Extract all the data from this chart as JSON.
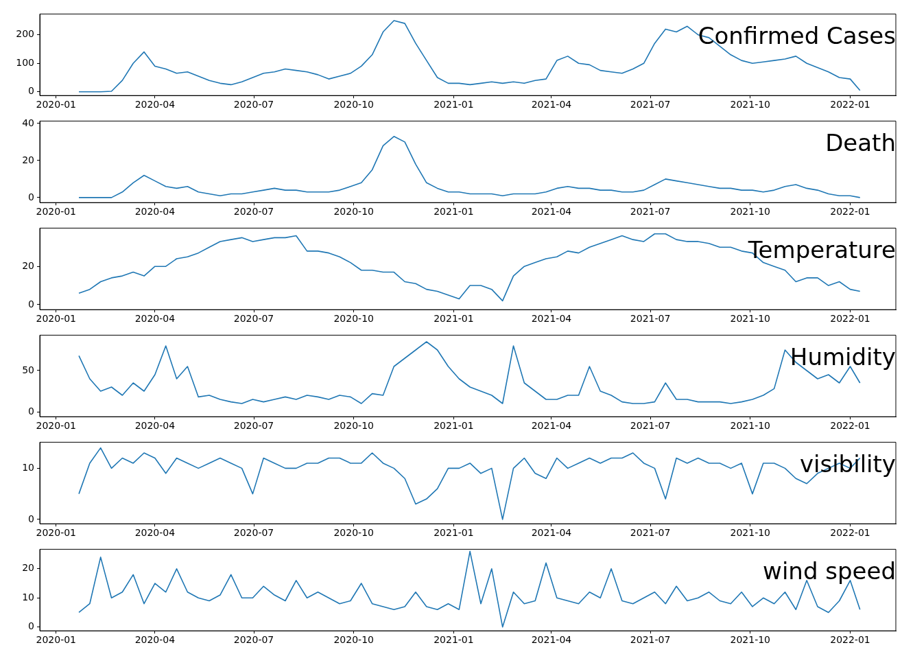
{
  "chart_data": [
    {
      "type": "line",
      "title": "Confirmed Cases",
      "color": "#1f77b4",
      "marker": "none",
      "line_style": "solid",
      "grid": false,
      "legend": false,
      "x": [
        "2020-01-22",
        "2020-02-01",
        "2020-02-11",
        "2020-02-21",
        "2020-03-02",
        "2020-03-12",
        "2020-03-22",
        "2020-04-01",
        "2020-04-11",
        "2020-04-21",
        "2020-05-01",
        "2020-05-11",
        "2020-05-21",
        "2020-05-31",
        "2020-06-10",
        "2020-06-20",
        "2020-06-30",
        "2020-07-10",
        "2020-07-20",
        "2020-07-30",
        "2020-08-09",
        "2020-08-19",
        "2020-08-29",
        "2020-09-08",
        "2020-09-18",
        "2020-09-28",
        "2020-10-08",
        "2020-10-18",
        "2020-10-28",
        "2020-11-07",
        "2020-11-17",
        "2020-11-27",
        "2020-12-07",
        "2020-12-17",
        "2020-12-27",
        "2021-01-06",
        "2021-01-16",
        "2021-01-26",
        "2021-02-05",
        "2021-02-15",
        "2021-02-25",
        "2021-03-07",
        "2021-03-17",
        "2021-03-27",
        "2021-04-06",
        "2021-04-16",
        "2021-04-26",
        "2021-05-06",
        "2021-05-16",
        "2021-05-26",
        "2021-06-05",
        "2021-06-15",
        "2021-06-25",
        "2021-07-05",
        "2021-07-15",
        "2021-07-25",
        "2021-08-04",
        "2021-08-14",
        "2021-08-24",
        "2021-09-03",
        "2021-09-13",
        "2021-09-23",
        "2021-10-03",
        "2021-10-13",
        "2021-10-23",
        "2021-11-02",
        "2021-11-12",
        "2021-11-22",
        "2021-12-02",
        "2021-12-12",
        "2021-12-22",
        "2022-01-01",
        "2022-01-10"
      ],
      "values": [
        0,
        0,
        0,
        2,
        40,
        100,
        140,
        90,
        80,
        65,
        70,
        55,
        40,
        30,
        25,
        35,
        50,
        65,
        70,
        80,
        75,
        70,
        60,
        45,
        55,
        65,
        90,
        130,
        210,
        250,
        240,
        170,
        110,
        50,
        30,
        30,
        25,
        30,
        35,
        30,
        35,
        30,
        40,
        45,
        110,
        125,
        100,
        95,
        75,
        70,
        65,
        80,
        100,
        170,
        220,
        210,
        230,
        200,
        190,
        160,
        130,
        110,
        100,
        105,
        110,
        115,
        125,
        100,
        85,
        70,
        50,
        45,
        5
      ],
      "xlim": [
        "2019-12-17",
        "2022-02-12"
      ],
      "xticks": [
        "2020-01",
        "2020-04",
        "2020-07",
        "2020-10",
        "2021-01",
        "2021-04",
        "2021-07",
        "2021-10",
        "2022-01"
      ],
      "ylim": [
        -13,
        273
      ],
      "yticks": [
        0,
        100,
        200
      ]
    },
    {
      "type": "line",
      "title": "Death",
      "color": "#1f77b4",
      "marker": "none",
      "line_style": "solid",
      "grid": false,
      "legend": false,
      "x": [
        "2020-01-22",
        "2020-02-01",
        "2020-02-11",
        "2020-02-21",
        "2020-03-02",
        "2020-03-12",
        "2020-03-22",
        "2020-04-01",
        "2020-04-11",
        "2020-04-21",
        "2020-05-01",
        "2020-05-11",
        "2020-05-21",
        "2020-05-31",
        "2020-06-10",
        "2020-06-20",
        "2020-06-30",
        "2020-07-10",
        "2020-07-20",
        "2020-07-30",
        "2020-08-09",
        "2020-08-19",
        "2020-08-29",
        "2020-09-08",
        "2020-09-18",
        "2020-09-28",
        "2020-10-08",
        "2020-10-18",
        "2020-10-28",
        "2020-11-07",
        "2020-11-17",
        "2020-11-27",
        "2020-12-07",
        "2020-12-17",
        "2020-12-27",
        "2021-01-06",
        "2021-01-16",
        "2021-01-26",
        "2021-02-05",
        "2021-02-15",
        "2021-02-25",
        "2021-03-07",
        "2021-03-17",
        "2021-03-27",
        "2021-04-06",
        "2021-04-16",
        "2021-04-26",
        "2021-05-06",
        "2021-05-16",
        "2021-05-26",
        "2021-06-05",
        "2021-06-15",
        "2021-06-25",
        "2021-07-05",
        "2021-07-15",
        "2021-07-25",
        "2021-08-04",
        "2021-08-14",
        "2021-08-24",
        "2021-09-03",
        "2021-09-13",
        "2021-09-23",
        "2021-10-03",
        "2021-10-13",
        "2021-10-23",
        "2021-11-02",
        "2021-11-12",
        "2021-11-22",
        "2021-12-02",
        "2021-12-12",
        "2021-12-22",
        "2022-01-01",
        "2022-01-10"
      ],
      "values": [
        0,
        0,
        0,
        0,
        3,
        8,
        12,
        9,
        6,
        5,
        6,
        3,
        2,
        1,
        2,
        2,
        3,
        4,
        5,
        4,
        4,
        3,
        3,
        3,
        4,
        6,
        8,
        15,
        28,
        33,
        30,
        18,
        8,
        5,
        3,
        3,
        2,
        2,
        2,
        1,
        2,
        2,
        2,
        3,
        5,
        6,
        5,
        5,
        4,
        4,
        3,
        3,
        4,
        7,
        10,
        9,
        8,
        7,
        6,
        5,
        5,
        4,
        4,
        3,
        4,
        6,
        7,
        5,
        4,
        2,
        1,
        1,
        0
      ],
      "xlim": [
        "2019-12-17",
        "2022-02-12"
      ],
      "xticks": [
        "2020-01",
        "2020-04",
        "2020-07",
        "2020-10",
        "2021-01",
        "2021-04",
        "2021-07",
        "2021-10",
        "2022-01"
      ],
      "ylim": [
        -2.7,
        41.3
      ],
      "yticks": [
        0,
        20,
        40
      ]
    },
    {
      "type": "line",
      "title": "Temperature",
      "color": "#1f77b4",
      "marker": "none",
      "line_style": "solid",
      "grid": false,
      "legend": false,
      "x": [
        "2020-01-22",
        "2020-02-01",
        "2020-02-11",
        "2020-02-21",
        "2020-03-02",
        "2020-03-12",
        "2020-03-22",
        "2020-04-01",
        "2020-04-11",
        "2020-04-21",
        "2020-05-01",
        "2020-05-11",
        "2020-05-21",
        "2020-05-31",
        "2020-06-10",
        "2020-06-20",
        "2020-06-30",
        "2020-07-10",
        "2020-07-20",
        "2020-07-30",
        "2020-08-09",
        "2020-08-19",
        "2020-08-29",
        "2020-09-08",
        "2020-09-18",
        "2020-09-28",
        "2020-10-08",
        "2020-10-18",
        "2020-10-28",
        "2020-11-07",
        "2020-11-17",
        "2020-11-27",
        "2020-12-07",
        "2020-12-17",
        "2020-12-27",
        "2021-01-06",
        "2021-01-16",
        "2021-01-26",
        "2021-02-05",
        "2021-02-15",
        "2021-02-25",
        "2021-03-07",
        "2021-03-17",
        "2021-03-27",
        "2021-04-06",
        "2021-04-16",
        "2021-04-26",
        "2021-05-06",
        "2021-05-16",
        "2021-05-26",
        "2021-06-05",
        "2021-06-15",
        "2021-06-25",
        "2021-07-05",
        "2021-07-15",
        "2021-07-25",
        "2021-08-04",
        "2021-08-14",
        "2021-08-24",
        "2021-09-03",
        "2021-09-13",
        "2021-09-23",
        "2021-10-03",
        "2021-10-13",
        "2021-10-23",
        "2021-11-02",
        "2021-11-12",
        "2021-11-22",
        "2021-12-02",
        "2021-12-12",
        "2021-12-22",
        "2022-01-01",
        "2022-01-10"
      ],
      "values": [
        6,
        8,
        12,
        14,
        15,
        17,
        15,
        20,
        20,
        24,
        25,
        27,
        30,
        33,
        34,
        35,
        33,
        34,
        35,
        35,
        36,
        28,
        28,
        27,
        25,
        22,
        18,
        18,
        17,
        17,
        12,
        11,
        8,
        7,
        5,
        3,
        10,
        10,
        8,
        2,
        15,
        20,
        22,
        24,
        25,
        28,
        27,
        30,
        32,
        34,
        36,
        34,
        33,
        37,
        37,
        34,
        33,
        33,
        32,
        30,
        30,
        28,
        27,
        22,
        20,
        18,
        12,
        14,
        14,
        10,
        12,
        8,
        7
      ],
      "xlim": [
        "2019-12-17",
        "2022-02-12"
      ],
      "xticks": [
        "2020-01",
        "2020-04",
        "2020-07",
        "2020-10",
        "2021-01",
        "2021-04",
        "2021-07",
        "2021-10",
        "2022-01"
      ],
      "ylim": [
        -2.6,
        40
      ],
      "yticks": [
        0,
        20
      ]
    },
    {
      "type": "line",
      "title": "Humidity",
      "color": "#1f77b4",
      "marker": "none",
      "line_style": "solid",
      "grid": false,
      "legend": false,
      "x": [
        "2020-01-22",
        "2020-02-01",
        "2020-02-11",
        "2020-02-21",
        "2020-03-02",
        "2020-03-12",
        "2020-03-22",
        "2020-04-01",
        "2020-04-11",
        "2020-04-21",
        "2020-05-01",
        "2020-05-11",
        "2020-05-21",
        "2020-05-31",
        "2020-06-10",
        "2020-06-20",
        "2020-06-30",
        "2020-07-10",
        "2020-07-20",
        "2020-07-30",
        "2020-08-09",
        "2020-08-19",
        "2020-08-29",
        "2020-09-08",
        "2020-09-18",
        "2020-09-28",
        "2020-10-08",
        "2020-10-18",
        "2020-10-28",
        "2020-11-07",
        "2020-11-17",
        "2020-11-27",
        "2020-12-07",
        "2020-12-17",
        "2020-12-27",
        "2021-01-06",
        "2021-01-16",
        "2021-01-26",
        "2021-02-05",
        "2021-02-15",
        "2021-02-25",
        "2021-03-07",
        "2021-03-17",
        "2021-03-27",
        "2021-04-06",
        "2021-04-16",
        "2021-04-26",
        "2021-05-06",
        "2021-05-16",
        "2021-05-26",
        "2021-06-05",
        "2021-06-15",
        "2021-06-25",
        "2021-07-05",
        "2021-07-15",
        "2021-07-25",
        "2021-08-04",
        "2021-08-14",
        "2021-08-24",
        "2021-09-03",
        "2021-09-13",
        "2021-09-23",
        "2021-10-03",
        "2021-10-13",
        "2021-10-23",
        "2021-11-02",
        "2021-11-12",
        "2021-11-22",
        "2021-12-02",
        "2021-12-12",
        "2021-12-22",
        "2022-01-01",
        "2022-01-10"
      ],
      "values": [
        68,
        40,
        25,
        30,
        20,
        35,
        25,
        45,
        80,
        40,
        55,
        18,
        20,
        15,
        12,
        10,
        15,
        12,
        15,
        18,
        15,
        20,
        18,
        15,
        20,
        18,
        10,
        22,
        20,
        55,
        65,
        75,
        85,
        75,
        55,
        40,
        30,
        25,
        20,
        10,
        80,
        35,
        25,
        15,
        15,
        20,
        20,
        55,
        25,
        20,
        12,
        10,
        10,
        12,
        35,
        15,
        15,
        12,
        12,
        12,
        10,
        12,
        15,
        20,
        28,
        75,
        60,
        50,
        40,
        45,
        35,
        55,
        35
      ],
      "xlim": [
        "2019-12-17",
        "2022-02-12"
      ],
      "xticks": [
        "2020-01",
        "2020-04",
        "2020-07",
        "2020-10",
        "2021-01",
        "2021-04",
        "2021-07",
        "2021-10",
        "2022-01"
      ],
      "ylim": [
        -6,
        93
      ],
      "yticks": [
        0,
        50
      ]
    },
    {
      "type": "line",
      "title": "visibility",
      "color": "#1f77b4",
      "marker": "none",
      "line_style": "solid",
      "grid": false,
      "legend": false,
      "x": [
        "2020-01-22",
        "2020-02-01",
        "2020-02-11",
        "2020-02-21",
        "2020-03-02",
        "2020-03-12",
        "2020-03-22",
        "2020-04-01",
        "2020-04-11",
        "2020-04-21",
        "2020-05-01",
        "2020-05-11",
        "2020-05-21",
        "2020-05-31",
        "2020-06-10",
        "2020-06-20",
        "2020-06-30",
        "2020-07-10",
        "2020-07-20",
        "2020-07-30",
        "2020-08-09",
        "2020-08-19",
        "2020-08-29",
        "2020-09-08",
        "2020-09-18",
        "2020-09-28",
        "2020-10-08",
        "2020-10-18",
        "2020-10-28",
        "2020-11-07",
        "2020-11-17",
        "2020-11-27",
        "2020-12-07",
        "2020-12-17",
        "2020-12-27",
        "2021-01-06",
        "2021-01-16",
        "2021-01-26",
        "2021-02-05",
        "2021-02-15",
        "2021-02-25",
        "2021-03-07",
        "2021-03-17",
        "2021-03-27",
        "2021-04-06",
        "2021-04-16",
        "2021-04-26",
        "2021-05-06",
        "2021-05-16",
        "2021-05-26",
        "2021-06-05",
        "2021-06-15",
        "2021-06-25",
        "2021-07-05",
        "2021-07-15",
        "2021-07-25",
        "2021-08-04",
        "2021-08-14",
        "2021-08-24",
        "2021-09-03",
        "2021-09-13",
        "2021-09-23",
        "2021-10-03",
        "2021-10-13",
        "2021-10-23",
        "2021-11-02",
        "2021-11-12",
        "2021-11-22",
        "2021-12-02",
        "2021-12-12",
        "2021-12-22",
        "2022-01-01",
        "2022-01-10"
      ],
      "values": [
        5,
        11,
        14,
        10,
        12,
        11,
        13,
        12,
        9,
        12,
        11,
        10,
        11,
        12,
        11,
        10,
        5,
        12,
        11,
        10,
        10,
        11,
        11,
        12,
        12,
        11,
        11,
        13,
        11,
        10,
        8,
        3,
        4,
        6,
        10,
        10,
        11,
        9,
        10,
        0,
        10,
        12,
        9,
        8,
        12,
        10,
        11,
        12,
        11,
        12,
        12,
        13,
        11,
        10,
        4,
        12,
        11,
        12,
        11,
        11,
        10,
        11,
        5,
        11,
        11,
        10,
        8,
        7,
        9,
        10,
        11,
        10,
        12
      ],
      "xlim": [
        "2019-12-17",
        "2022-02-12"
      ],
      "xticks": [
        "2020-01",
        "2020-04",
        "2020-07",
        "2020-10",
        "2021-01",
        "2021-04",
        "2021-07",
        "2021-10",
        "2022-01"
      ],
      "ylim": [
        -0.85,
        15.1
      ],
      "yticks": [
        0,
        10
      ]
    },
    {
      "type": "line",
      "title": "wind speed",
      "color": "#1f77b4",
      "marker": "none",
      "line_style": "solid",
      "grid": false,
      "legend": false,
      "x": [
        "2020-01-22",
        "2020-02-01",
        "2020-02-11",
        "2020-02-21",
        "2020-03-02",
        "2020-03-12",
        "2020-03-22",
        "2020-04-01",
        "2020-04-11",
        "2020-04-21",
        "2020-05-01",
        "2020-05-11",
        "2020-05-21",
        "2020-05-31",
        "2020-06-10",
        "2020-06-20",
        "2020-06-30",
        "2020-07-10",
        "2020-07-20",
        "2020-07-30",
        "2020-08-09",
        "2020-08-19",
        "2020-08-29",
        "2020-09-08",
        "2020-09-18",
        "2020-09-28",
        "2020-10-08",
        "2020-10-18",
        "2020-10-28",
        "2020-11-07",
        "2020-11-17",
        "2020-11-27",
        "2020-12-07",
        "2020-12-17",
        "2020-12-27",
        "2021-01-06",
        "2021-01-16",
        "2021-01-26",
        "2021-02-05",
        "2021-02-15",
        "2021-02-25",
        "2021-03-07",
        "2021-03-17",
        "2021-03-27",
        "2021-04-06",
        "2021-04-16",
        "2021-04-26",
        "2021-05-06",
        "2021-05-16",
        "2021-05-26",
        "2021-06-05",
        "2021-06-15",
        "2021-06-25",
        "2021-07-05",
        "2021-07-15",
        "2021-07-25",
        "2021-08-04",
        "2021-08-14",
        "2021-08-24",
        "2021-09-03",
        "2021-09-13",
        "2021-09-23",
        "2021-10-03",
        "2021-10-13",
        "2021-10-23",
        "2021-11-02",
        "2021-11-12",
        "2021-11-22",
        "2021-12-02",
        "2021-12-12",
        "2021-12-22",
        "2022-01-01",
        "2022-01-10"
      ],
      "values": [
        5,
        8,
        24,
        10,
        12,
        18,
        8,
        15,
        12,
        20,
        12,
        10,
        9,
        11,
        18,
        10,
        10,
        14,
        11,
        9,
        16,
        10,
        12,
        10,
        8,
        9,
        15,
        8,
        7,
        6,
        7,
        12,
        7,
        6,
        8,
        6,
        26,
        8,
        20,
        0,
        12,
        8,
        9,
        22,
        10,
        9,
        8,
        12,
        10,
        20,
        9,
        8,
        10,
        12,
        8,
        14,
        9,
        10,
        12,
        9,
        8,
        12,
        7,
        10,
        8,
        12,
        6,
        16,
        7,
        5,
        9,
        16,
        6
      ],
      "xlim": [
        "2019-12-17",
        "2022-02-12"
      ],
      "xticks": [
        "2020-01",
        "2020-04",
        "2020-07",
        "2020-10",
        "2021-01",
        "2021-04",
        "2021-07",
        "2021-10",
        "2022-01"
      ],
      "ylim": [
        -1.3,
        26.7
      ],
      "yticks": [
        0,
        10,
        20
      ]
    }
  ]
}
